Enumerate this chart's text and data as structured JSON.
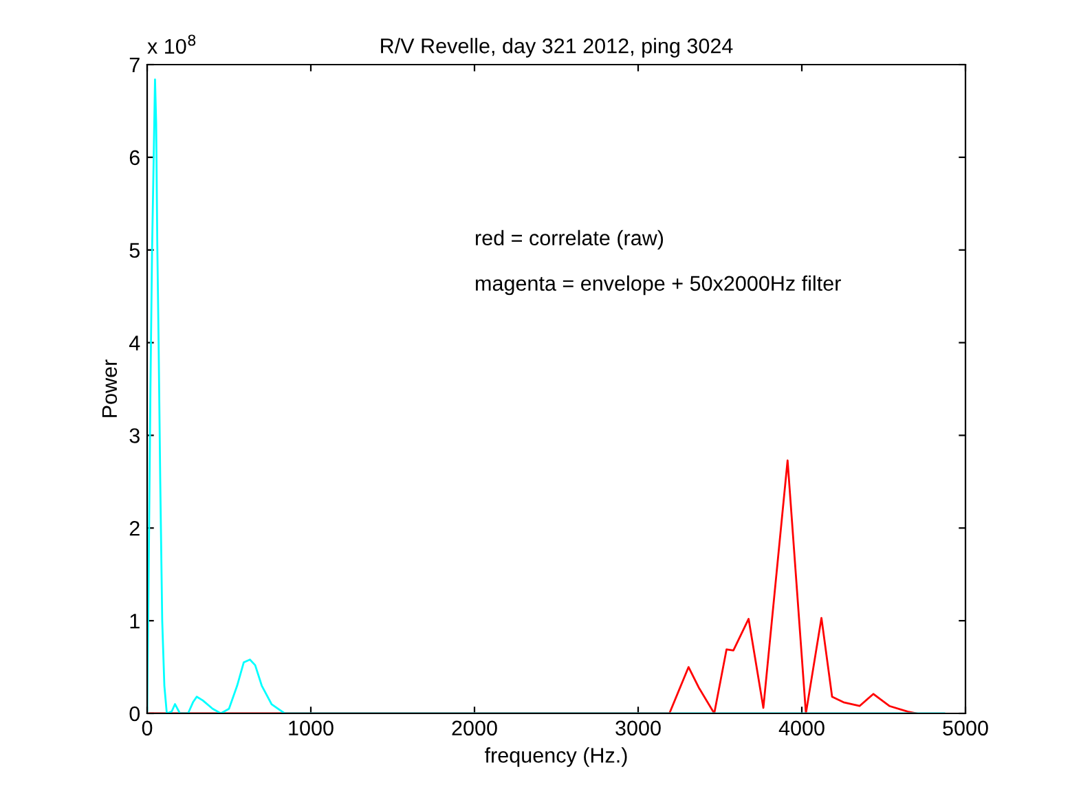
{
  "chart_data": {
    "type": "line",
    "title": "R/V Revelle, day 321 2012, ping 3024",
    "xlabel": "frequency (Hz.)",
    "ylabel": "Power",
    "annotations": [
      "x 10$^{8}$",
      "red = correlate (raw)",
      "magenta = envelope + 50x2000Hz filter"
    ],
    "series": [
      {
        "color": "#ff0000",
        "x": [
          0,
          840,
          3034,
          3191,
          3308,
          3370,
          3465,
          3540,
          3582,
          3675,
          3765,
          3913,
          4025,
          4120,
          4185,
          4255,
          4353,
          4437,
          4535,
          4647,
          4703
        ],
        "values": [
          0,
          0,
          0,
          0,
          0.5,
          0.28,
          0,
          0.69,
          0.68,
          1.02,
          0.06,
          2.73,
          0,
          1.03,
          0.18,
          0.12,
          0.08,
          0.21,
          0.08,
          0.02,
          0
        ]
      },
      {
        "color": "#00ffff",
        "x": [
          0,
          8,
          20,
          30,
          40,
          48,
          55,
          62,
          70,
          80,
          92,
          105,
          120,
          150,
          170,
          200,
          250,
          280,
          303,
          340,
          400,
          450,
          500,
          550,
          590,
          628,
          660,
          700,
          760,
          840,
          4870
        ],
        "values": [
          0,
          1.3,
          3.5,
          5.0,
          6.0,
          6.84,
          6.37,
          5.05,
          4.0,
          2.5,
          1.0,
          0.3,
          0,
          0.02,
          0.1,
          0,
          0,
          0.12,
          0.18,
          0.14,
          0.05,
          0,
          0.05,
          0.3,
          0.55,
          0.58,
          0.52,
          0.3,
          0.1,
          0,
          0
        ]
      }
    ],
    "xlim": [
      0,
      5000
    ],
    "xticks": [
      0,
      1000,
      2000,
      3000,
      4000,
      5000
    ],
    "ylim": [
      0,
      7
    ],
    "yticks": [
      0,
      1,
      2,
      3,
      4,
      5,
      6,
      7
    ],
    "grid": false,
    "legend": false
  }
}
